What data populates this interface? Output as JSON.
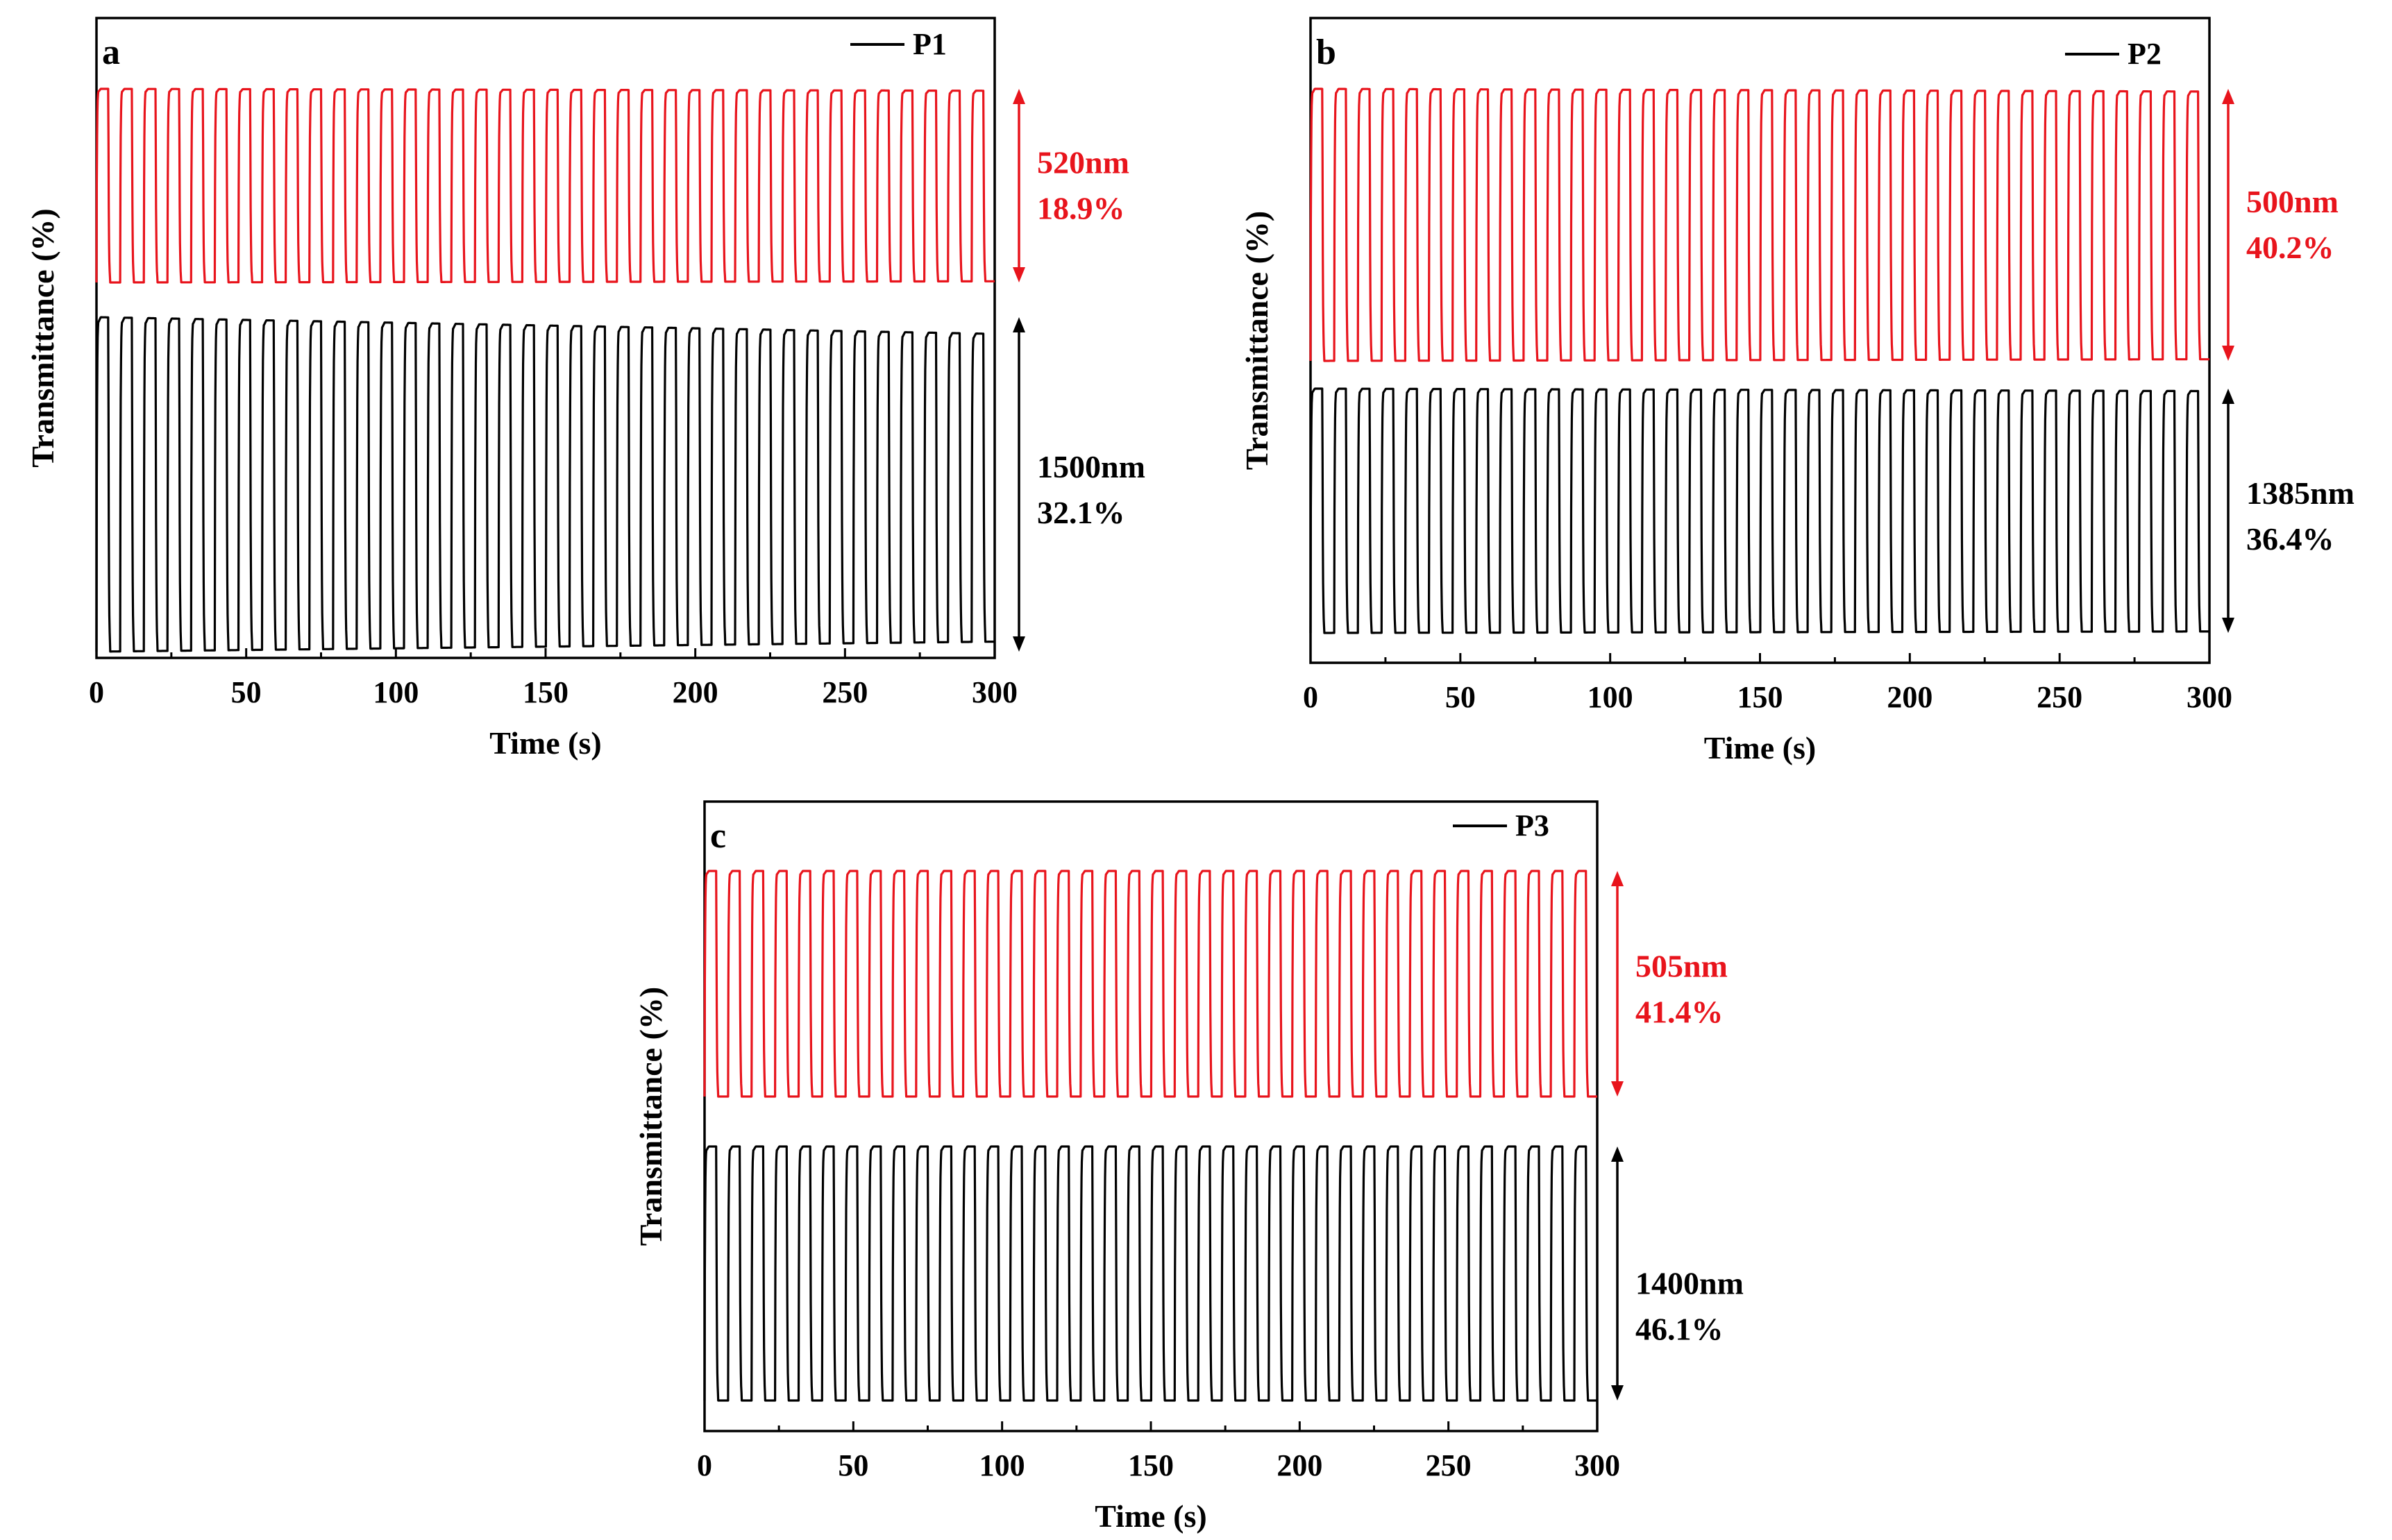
{
  "colors": {
    "red_series": "#e8141c",
    "black_series": "#000000",
    "axes": "#000000"
  },
  "panels": [
    {
      "panel_label": "a",
      "legend": "P1",
      "xlabel": "Time (s)",
      "ylabel": "Transmittance (%)",
      "red_note": {
        "wavelength": "520nm",
        "contrast": "18.9%"
      },
      "black_note": {
        "wavelength": "1500nm",
        "contrast": "32.1%"
      }
    },
    {
      "panel_label": "b",
      "legend": "P2",
      "xlabel": "Time (s)",
      "ylabel": "Transmittance (%)",
      "red_note": {
        "wavelength": "500nm",
        "contrast": "40.2%"
      },
      "black_note": {
        "wavelength": "1385nm",
        "contrast": "36.4%"
      }
    },
    {
      "panel_label": "c",
      "legend": "P3",
      "xlabel": "Time (s)",
      "ylabel": "Transmittance (%)",
      "red_note": {
        "wavelength": "505nm",
        "contrast": "41.4%"
      },
      "black_note": {
        "wavelength": "1400nm",
        "contrast": "46.1%"
      }
    }
  ],
  "chart_data": [
    {
      "type": "line",
      "xlabel": "Time (s)",
      "ylabel": "Transmittance (%)",
      "xlim": [
        0,
        300
      ],
      "xticks": [
        0,
        50,
        100,
        150,
        200,
        250,
        300
      ],
      "y_tick_labels": false,
      "legend": "P1",
      "legend_position": "top-right",
      "switching_period_s": 7.9,
      "series": [
        {
          "name": "520nm",
          "color": "#e8141c",
          "cycles": 38,
          "contrast_percent": 18.9,
          "band": "upper",
          "degradation": 0.02
        },
        {
          "name": "1500nm",
          "color": "#000000",
          "cycles": 38,
          "contrast_percent": 32.1,
          "band": "lower",
          "degradation": 0.1
        }
      ]
    },
    {
      "type": "line",
      "xlabel": "Time (s)",
      "ylabel": "Transmittance (%)",
      "xlim": [
        0,
        300
      ],
      "xticks": [
        0,
        50,
        100,
        150,
        200,
        250,
        300
      ],
      "y_tick_labels": false,
      "legend": "P2",
      "legend_position": "top-right",
      "switching_period_s": 7.9,
      "series": [
        {
          "name": "500nm",
          "color": "#e8141c",
          "cycles": 38,
          "contrast_percent": 40.2,
          "band": "upper",
          "degradation": 0.02
        },
        {
          "name": "1385nm",
          "color": "#000000",
          "cycles": 38,
          "contrast_percent": 36.4,
          "band": "lower",
          "degradation": 0.02
        }
      ]
    },
    {
      "type": "line",
      "xlabel": "Time (s)",
      "ylabel": "Transmittance (%)",
      "xlim": [
        0,
        300
      ],
      "xticks": [
        0,
        50,
        100,
        150,
        200,
        250,
        300
      ],
      "y_tick_labels": false,
      "legend": "P3",
      "legend_position": "top-right",
      "switching_period_s": 7.9,
      "series": [
        {
          "name": "505nm",
          "color": "#e8141c",
          "cycles": 38,
          "contrast_percent": 41.4,
          "band": "upper",
          "degradation": 0.0
        },
        {
          "name": "1400nm",
          "color": "#000000",
          "cycles": 38,
          "contrast_percent": 46.1,
          "band": "lower",
          "degradation": 0.0
        }
      ]
    }
  ]
}
